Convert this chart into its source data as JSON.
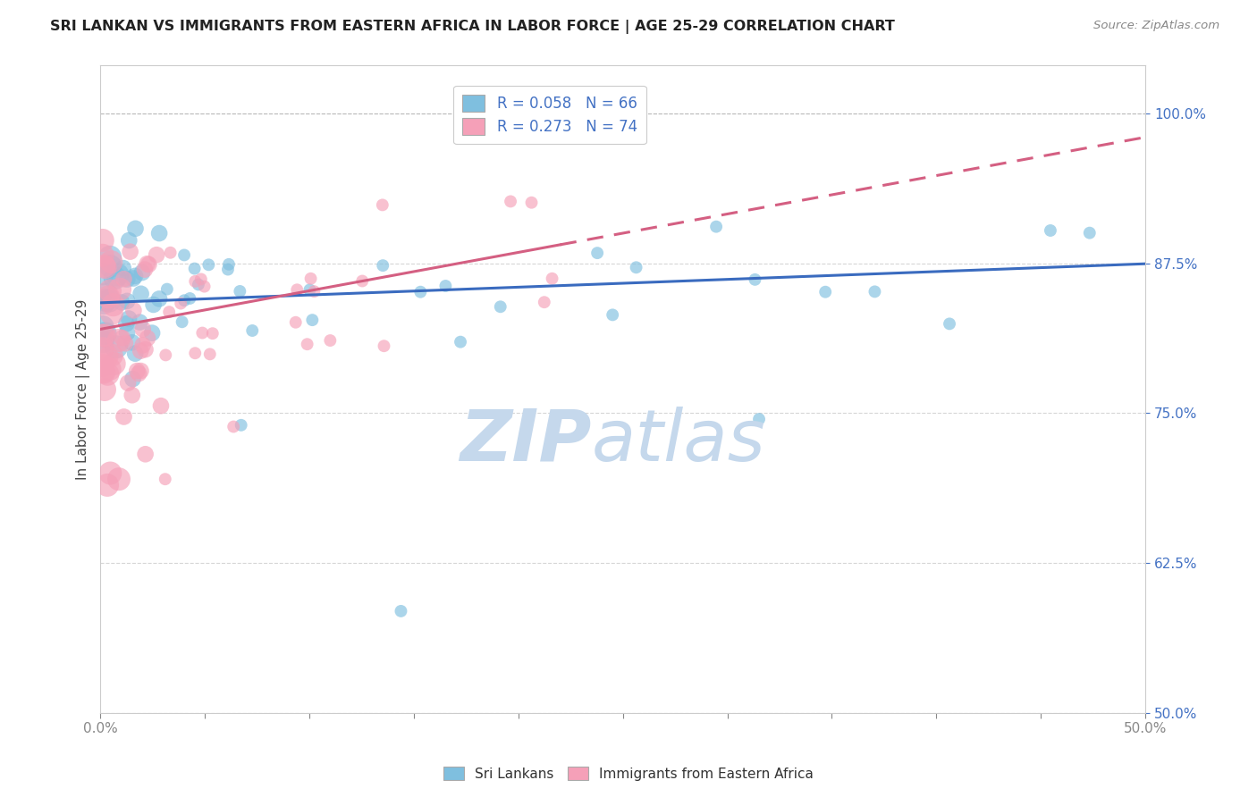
{
  "title": "SRI LANKAN VS IMMIGRANTS FROM EASTERN AFRICA IN LABOR FORCE | AGE 25-29 CORRELATION CHART",
  "source": "Source: ZipAtlas.com",
  "ylabel": "In Labor Force | Age 25-29",
  "xlim": [
    0.0,
    0.5
  ],
  "ylim": [
    0.5,
    1.04
  ],
  "ytick_positions": [
    0.5,
    0.625,
    0.75,
    0.875,
    1.0
  ],
  "yticklabels": [
    "50.0%",
    "62.5%",
    "75.0%",
    "87.5%",
    "100.0%"
  ],
  "blue_color": "#7fbfdf",
  "pink_color": "#f5a0b8",
  "trend_blue": "#3a6bbf",
  "trend_pink": "#d45f82",
  "R_blue": 0.058,
  "N_blue": 66,
  "R_pink": 0.273,
  "N_pink": 74,
  "watermark_zip": "ZIP",
  "watermark_atlas": "atlas",
  "watermark_color": "#c5d8ec",
  "legend_blue_label": "R = 0.058   N = 66",
  "legend_pink_label": "R = 0.273   N = 74",
  "title_color": "#222222",
  "axis_color": "#4472c4",
  "grid_color": "#cccccc",
  "blue_intercept": 0.842,
  "blue_slope": 0.065,
  "pink_intercept": 0.82,
  "pink_slope": 0.32
}
